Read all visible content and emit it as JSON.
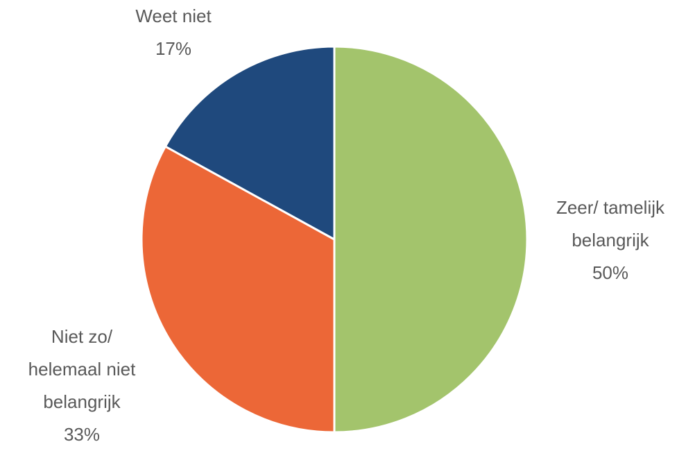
{
  "chart_data": {
    "type": "pie",
    "categories": [
      "Zeer/ tamelijk belangrijk",
      "Niet zo/ helemaal niet belangrijk",
      "Weet niet"
    ],
    "values": [
      50,
      33,
      17
    ],
    "value_labels": [
      "50%",
      "33%",
      "17%"
    ],
    "colors": [
      "#a3c46c",
      "#ec6737",
      "#1f497d"
    ]
  }
}
